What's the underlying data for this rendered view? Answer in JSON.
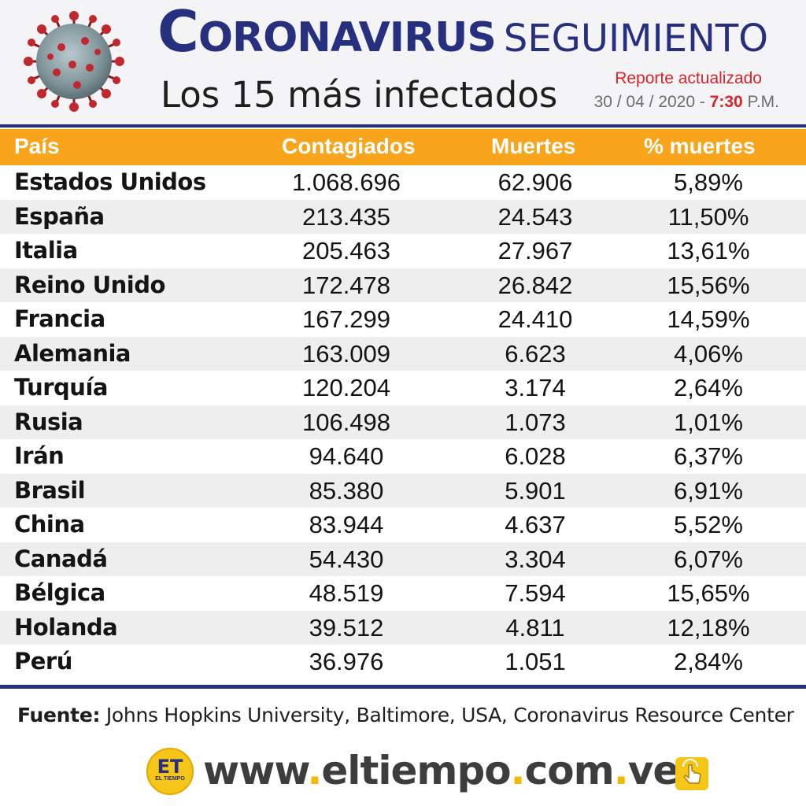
{
  "header": {
    "title_main_first": "C",
    "title_main_rest": "ORONAVIRUS",
    "title_sub": "SEGUIMIENTO",
    "subtitle": "Los 15 más infectados",
    "report_label": "Reporte actualizado",
    "report_date": "30 / 04 / 2020 - ",
    "report_time": "7:30",
    "report_ampm": " P.M.",
    "icon": "coronavirus-icon"
  },
  "table": {
    "headers": {
      "country": "País",
      "cases": "Contagiados",
      "deaths": "Muertes",
      "pct": "% muertes"
    },
    "rows": [
      {
        "country": "Estados Unidos",
        "cases": "1.068.696",
        "deaths": "62.906",
        "pct": "5,89%"
      },
      {
        "country": "España",
        "cases": "213.435",
        "deaths": "24.543",
        "pct": "11,50%"
      },
      {
        "country": "Italia",
        "cases": "205.463",
        "deaths": "27.967",
        "pct": "13,61%"
      },
      {
        "country": "Reino Unido",
        "cases": "172.478",
        "deaths": "26.842",
        "pct": "15,56%"
      },
      {
        "country": "Francia",
        "cases": "167.299",
        "deaths": "24.410",
        "pct": "14,59%"
      },
      {
        "country": "Alemania",
        "cases": "163.009",
        "deaths": "6.623",
        "pct": "4,06%"
      },
      {
        "country": "Turquía",
        "cases": "120.204",
        "deaths": "3.174",
        "pct": "2,64%"
      },
      {
        "country": "Rusia",
        "cases": "106.498",
        "deaths": "1.073",
        "pct": "1,01%"
      },
      {
        "country": "Irán",
        "cases": "94.640",
        "deaths": "6.028",
        "pct": "6,37%"
      },
      {
        "country": "Brasil",
        "cases": "85.380",
        "deaths": "5.901",
        "pct": "6,91%"
      },
      {
        "country": "China",
        "cases": "83.944",
        "deaths": "4.637",
        "pct": "5,52%"
      },
      {
        "country": "Canadá",
        "cases": "54.430",
        "deaths": "3.304",
        "pct": "6,07%"
      },
      {
        "country": "Bélgica",
        "cases": "48.519",
        "deaths": "7.594",
        "pct": "15,65%"
      },
      {
        "country": "Holanda",
        "cases": "39.512",
        "deaths": "4.811",
        "pct": "12,18%"
      },
      {
        "country": "Perú",
        "cases": "36.976",
        "deaths": "1.051",
        "pct": "2,84%"
      }
    ]
  },
  "footer": {
    "source_label": "Fuente:",
    "source_text": " Johns Hopkins University, Baltimore, USA, Coronavirus Resource Center",
    "logo_text": "ET",
    "logo_small": "EL TIEMPO",
    "url_parts": [
      "www",
      ".",
      "eltiempo",
      ".",
      "com",
      ".",
      "ve"
    ],
    "click_icon": "hand-pointer-icon"
  },
  "colors": {
    "navy": "#26307f",
    "orange_header": "#f8a51b",
    "red_accent": "#d8242a",
    "yellow_brand": "#f5c518"
  }
}
